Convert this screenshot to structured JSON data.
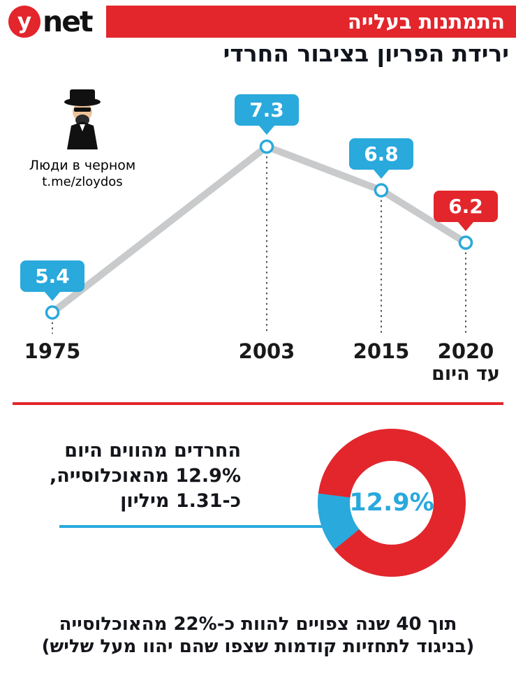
{
  "header": {
    "logo": {
      "circle_letter": "y",
      "brand_text": "net"
    },
    "banner_label": "התמתנות בעלייה"
  },
  "watermark": {
    "line1": "Люди в черном",
    "line2": "t.me/zloydos"
  },
  "chart_data": [
    {
      "type": "line",
      "title": "ירידת הפריון בציבור החרדי",
      "categories": [
        "1975",
        "2003",
        "2015",
        "2020"
      ],
      "sub_labels": [
        "",
        "",
        "",
        "עד היום"
      ],
      "values": [
        5.4,
        7.3,
        6.8,
        6.2
      ],
      "point_labels": [
        "5.4",
        "7.3",
        "6.8",
        "6.2"
      ],
      "label_colors": [
        "#29a9dc",
        "#29a9dc",
        "#29a9dc",
        "#e2262c"
      ],
      "line_color": "#c9cacb",
      "point_ring_color": "#29a9dc",
      "ylim": [
        5.0,
        7.5
      ],
      "grid": false,
      "legend": false
    },
    {
      "type": "pie",
      "slices": [
        {
          "value": 12.9,
          "color": "#29a9dc"
        },
        {
          "value": 87.1,
          "color": "#e2262c"
        }
      ],
      "center_label": "12.9%",
      "segment_center_deg": 254,
      "annotation_lines": [
        "החרדים מהווים היום",
        "12.9% מהאוכלוסייה,",
        "כ-1.31 מיליון"
      ]
    }
  ],
  "footer": {
    "line1": "תוך 40 שנה צפויים להוות כ-22% מהאוכלוסייה",
    "line2": "(בניגוד לתחזיות קודמות שצפו שהם יהוו מעל שליש)"
  }
}
